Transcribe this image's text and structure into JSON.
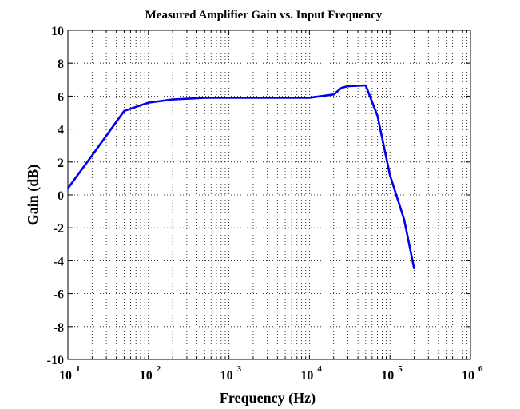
{
  "chart_data": {
    "type": "line",
    "title": "Measured Amplifier Gain vs. Input Frequency",
    "xlabel": "Frequency (Hz)",
    "ylabel": "Gain (dB)",
    "xscale": "log",
    "xlim": [
      10,
      1000000
    ],
    "ylim": [
      -10,
      10
    ],
    "grid": true,
    "grid_style": "dotted",
    "line_color": "#0000ee",
    "x_tick_labels": [
      {
        "base": "10",
        "exp": "1"
      },
      {
        "base": "10",
        "exp": "2"
      },
      {
        "base": "10",
        "exp": "3"
      },
      {
        "base": "10",
        "exp": "4"
      },
      {
        "base": "10",
        "exp": "5"
      },
      {
        "base": "10",
        "exp": "6"
      }
    ],
    "y_tick_labels": [
      "-10",
      "-8",
      "-6",
      "-4",
      "-2",
      "0",
      "2",
      "4",
      "6",
      "8",
      "10"
    ],
    "series": [
      {
        "x": [
          10,
          20,
          50,
          100,
          200,
          500,
          1000,
          2000,
          5000,
          10000,
          20000,
          25000,
          30000,
          50000,
          70000,
          100000,
          150000,
          200000
        ],
        "y": [
          0.4,
          2.4,
          5.1,
          5.6,
          5.8,
          5.9,
          5.9,
          5.9,
          5.9,
          5.9,
          6.1,
          6.5,
          6.6,
          6.65,
          4.8,
          1.2,
          -1.5,
          -4.5
        ]
      }
    ]
  }
}
